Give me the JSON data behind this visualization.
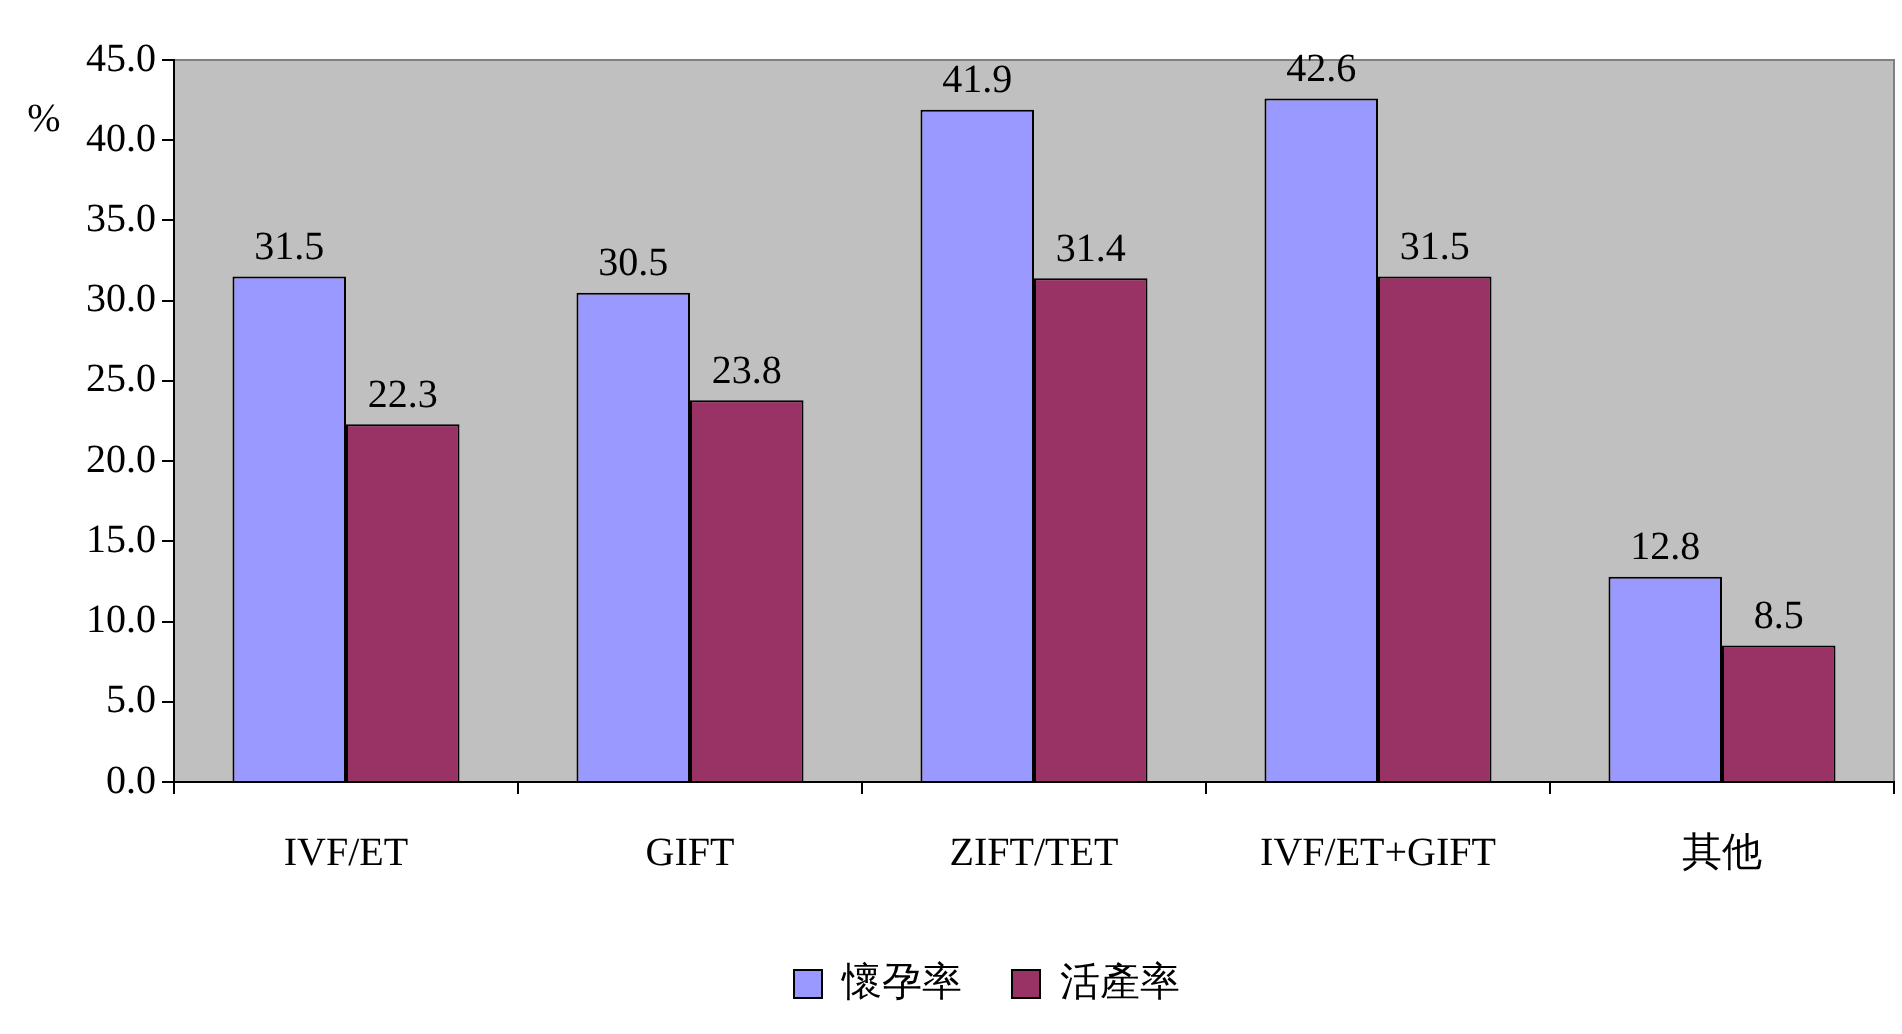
{
  "chart_data": {
    "type": "bar",
    "ylabel": "%",
    "categories": [
      "IVF/ET",
      "GIFT",
      "ZIFT/TET",
      "IVF/ET+GIFT",
      "其他"
    ],
    "series": [
      {
        "name": "懷孕率",
        "color": "#9999ff",
        "values": [
          31.5,
          30.5,
          41.9,
          42.6,
          12.8
        ]
      },
      {
        "name": "活產率",
        "color": "#993366",
        "values": [
          22.3,
          23.8,
          31.4,
          31.5,
          8.5
        ]
      }
    ],
    "ylim": [
      0,
      45
    ],
    "yticks": [
      {
        "value": 0,
        "label": "0.0"
      },
      {
        "value": 5,
        "label": "5.0"
      },
      {
        "value": 10,
        "label": "10.0"
      },
      {
        "value": 15,
        "label": "15.0"
      },
      {
        "value": 20,
        "label": "20.0"
      },
      {
        "value": 25,
        "label": "25.0"
      },
      {
        "value": 30,
        "label": "30.0"
      },
      {
        "value": 35,
        "label": "35.0"
      },
      {
        "value": 40,
        "label": "40.0"
      },
      {
        "value": 45,
        "label": "45.0"
      }
    ],
    "grid": false,
    "legend": "bottom",
    "data_labels": true
  }
}
